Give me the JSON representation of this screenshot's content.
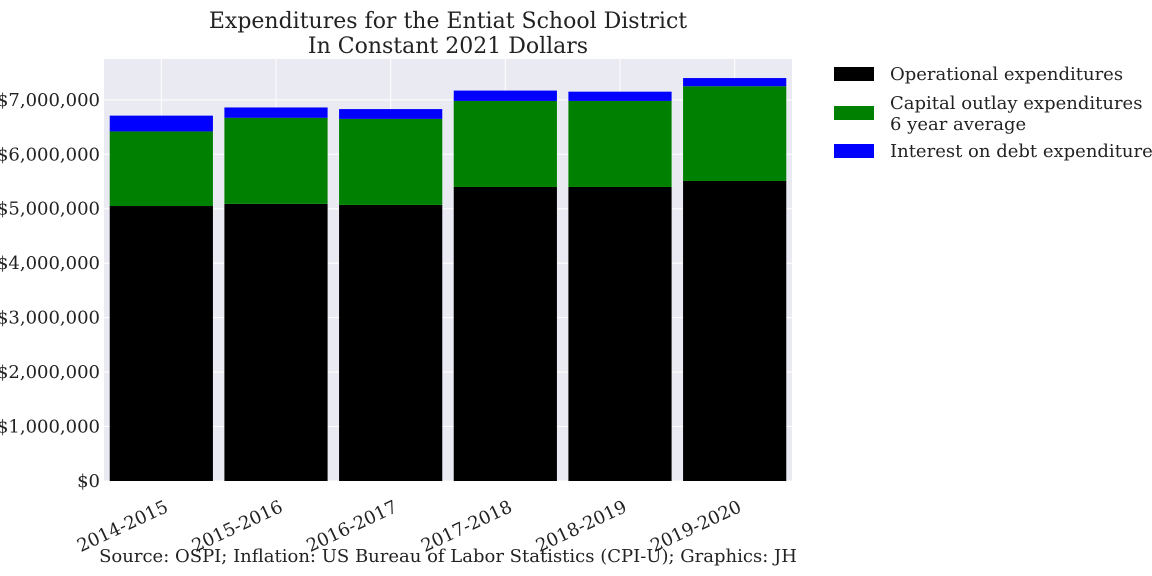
{
  "chart_data": {
    "type": "bar",
    "stacked": true,
    "title": "Expenditures for the Entiat School District",
    "subtitle": "In Constant 2021 Dollars",
    "xlabel": "",
    "ylabel": "",
    "categories": [
      "2014-2015",
      "2015-2016",
      "2016-2017",
      "2017-2018",
      "2018-2019",
      "2019-2020"
    ],
    "series": [
      {
        "name": "Operational expenditures",
        "color": "#000000",
        "values": [
          5050000,
          5090000,
          5070000,
          5400000,
          5400000,
          5510000
        ]
      },
      {
        "name": "Capital outlay expenditures\n6 year average",
        "color": "#008000",
        "values": [
          1370000,
          1580000,
          1580000,
          1580000,
          1580000,
          1740000
        ]
      },
      {
        "name": "Interest on debt expenditures",
        "color": "#0000ff",
        "values": [
          290000,
          190000,
          180000,
          190000,
          170000,
          150000
        ]
      }
    ],
    "ylim": [
      0,
      7750000
    ],
    "yticks": [
      0,
      1000000,
      2000000,
      3000000,
      4000000,
      5000000,
      6000000,
      7000000
    ],
    "ytick_labels": [
      "$0",
      "$1,000,000",
      "$2,000,000",
      "$3,000,000",
      "$4,000,000",
      "$5,000,000",
      "$6,000,000",
      "$7,000,000"
    ],
    "grid": true,
    "legend_placement": "outside-top-right",
    "caption": "Source: OSPI; Inflation: US Bureau of Labor Statistics (CPI-U); Graphics: JH"
  },
  "colors": {
    "plot_background": "#eaeaf2",
    "grid": "#ffffff"
  }
}
